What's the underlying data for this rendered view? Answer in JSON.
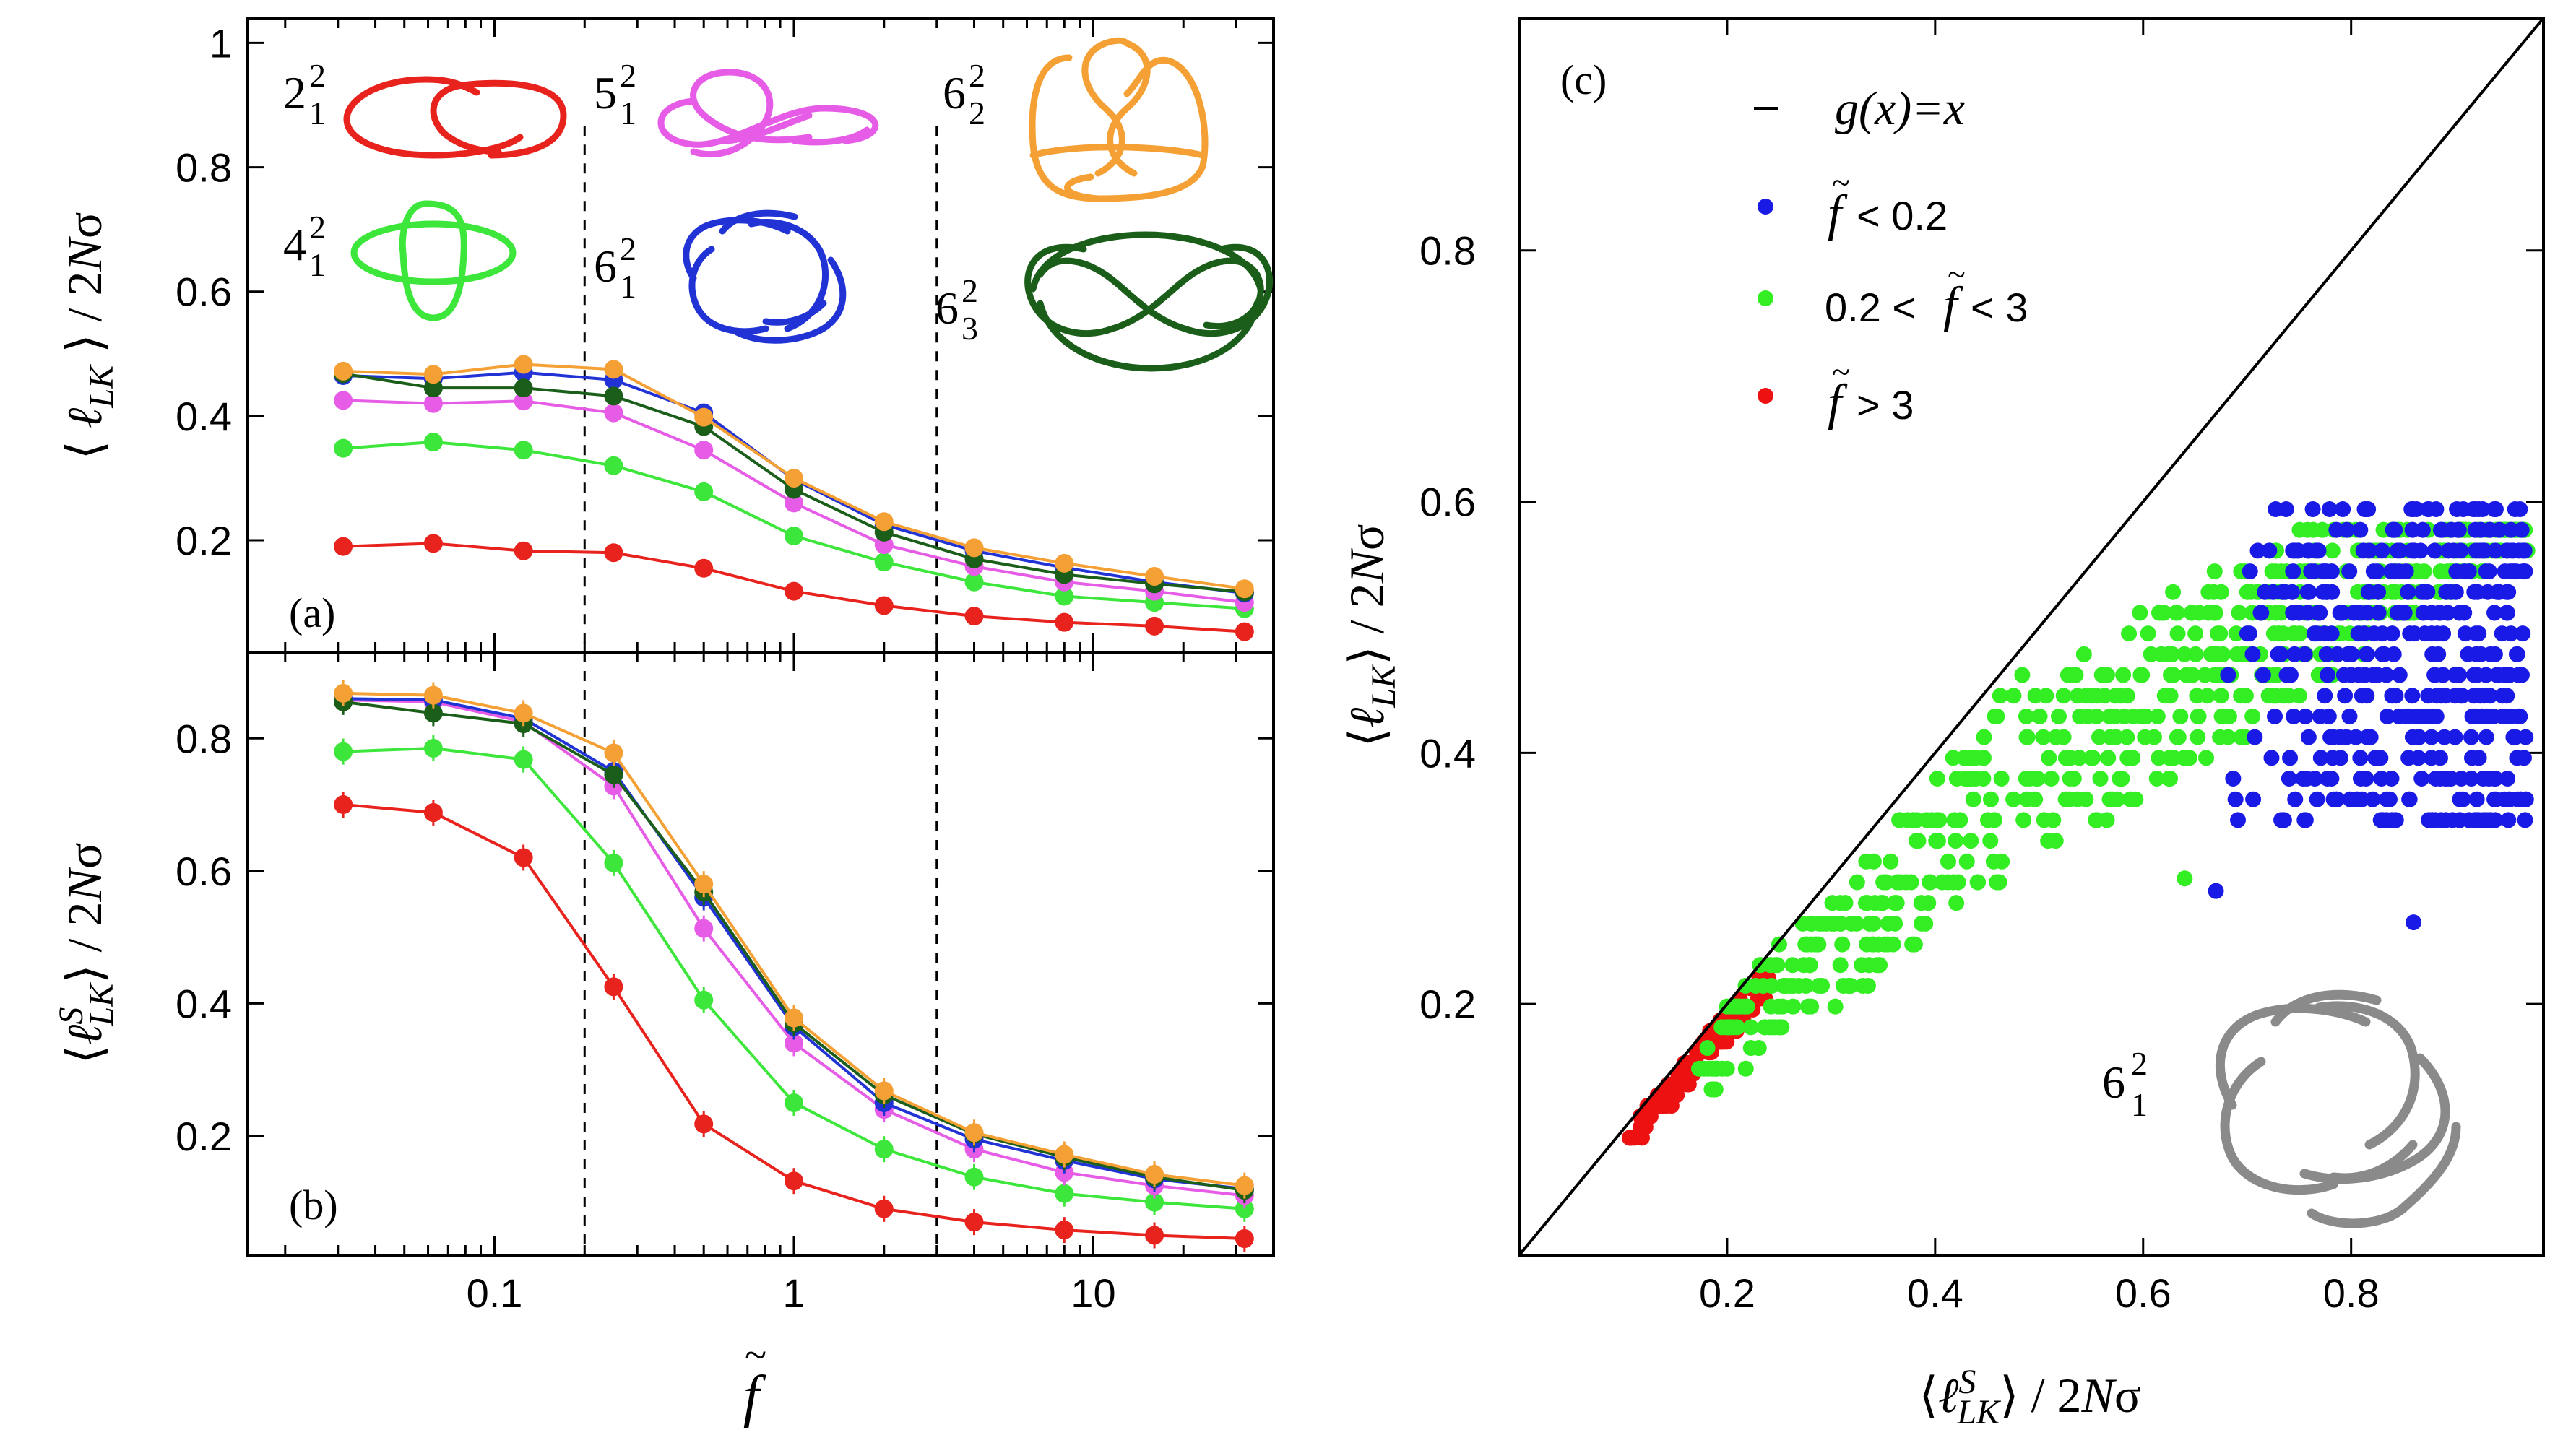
{
  "colors": {
    "red": "#e8231e",
    "green": "#3ce63a",
    "magenta": "#e65ce6",
    "blue": "#2233d6",
    "dark_green": "#1a5e1a",
    "orange": "#f5a035",
    "scatter_blue": "#1a1ae6",
    "scatter_green": "#33ee22",
    "scatter_red": "#ee1111",
    "grey": "#8a8a8a"
  },
  "knots": [
    {
      "name": "2_1^2",
      "base": "2",
      "sub": "1",
      "sup": "2",
      "color": "#e8231e",
      "icon": "hopf-link-icon"
    },
    {
      "name": "5_1^2",
      "base": "5",
      "sub": "1",
      "sup": "2",
      "color": "#e65ce6",
      "icon": "whitehead-link-icon"
    },
    {
      "name": "6_2^2",
      "base": "6",
      "sub": "2",
      "sup": "2",
      "color": "#f5a035",
      "icon": "link-6-2-2-icon"
    },
    {
      "name": "4_1^2",
      "base": "4",
      "sub": "1",
      "sup": "2",
      "color": "#3ce63a",
      "icon": "solomon-link-icon"
    },
    {
      "name": "6_1^2",
      "base": "6",
      "sub": "1",
      "sup": "2",
      "color": "#2233d6",
      "icon": "link-6-1-2-icon"
    },
    {
      "name": "6_3^2",
      "base": "6",
      "sub": "3",
      "sup": "2",
      "color": "#1a5e1a",
      "icon": "link-6-3-2-icon"
    }
  ],
  "chart_data": [
    {
      "id": "a",
      "type": "line",
      "panel_label": "(a)",
      "ylabel": "⟨ ℓ_LK ⟩ / 2Nσ",
      "xscale": "log",
      "xlim": [
        0.015,
        40
      ],
      "ylim": [
        0.02,
        1.04
      ],
      "yticks": [
        "0.2",
        "0.4",
        "0.6",
        "0.8",
        "1"
      ],
      "ytick_values": [
        0.2,
        0.4,
        0.6,
        0.8,
        1.0
      ],
      "vlines": [
        0.2,
        3
      ],
      "x": [
        0.03125,
        0.0625,
        0.125,
        0.25,
        0.5,
        1,
        2,
        4,
        8,
        16,
        32
      ],
      "series": [
        {
          "name": "2_1^2",
          "color": "#e8231e",
          "values": [
            0.19,
            0.195,
            0.183,
            0.18,
            0.155,
            0.118,
            0.095,
            0.078,
            0.068,
            0.062,
            0.053
          ]
        },
        {
          "name": "4_1^2",
          "color": "#3ce63a",
          "values": [
            0.348,
            0.358,
            0.345,
            0.32,
            0.278,
            0.207,
            0.165,
            0.133,
            0.11,
            0.1,
            0.09
          ]
        },
        {
          "name": "5_1^2",
          "color": "#e65ce6",
          "values": [
            0.425,
            0.42,
            0.424,
            0.405,
            0.345,
            0.26,
            0.193,
            0.158,
            0.133,
            0.118,
            0.1
          ]
        },
        {
          "name": "6_1^2",
          "color": "#2233d6",
          "values": [
            0.465,
            0.46,
            0.47,
            0.458,
            0.405,
            0.298,
            0.225,
            0.183,
            0.156,
            0.133,
            0.115
          ]
        },
        {
          "name": "6_3^2",
          "color": "#1a5e1a",
          "values": [
            0.468,
            0.445,
            0.445,
            0.432,
            0.383,
            0.282,
            0.213,
            0.17,
            0.145,
            0.13,
            0.117
          ]
        },
        {
          "name": "6_2^2",
          "color": "#f5a035",
          "values": [
            0.472,
            0.467,
            0.483,
            0.475,
            0.398,
            0.3,
            0.23,
            0.188,
            0.163,
            0.142,
            0.122
          ]
        }
      ]
    },
    {
      "id": "b",
      "type": "line",
      "panel_label": "(b)",
      "xlabel": "f̃",
      "ylabel": "⟨ ℓ^S_LK ⟩ / 2Nσ",
      "xscale": "log",
      "xlim": [
        0.015,
        40
      ],
      "xticks": [
        "0.1",
        "1",
        "10"
      ],
      "xtick_values": [
        0.1,
        1,
        10
      ],
      "ylim": [
        0.02,
        0.93
      ],
      "yticks": [
        "0.2",
        "0.4",
        "0.6",
        "0.8"
      ],
      "ytick_values": [
        0.2,
        0.4,
        0.6,
        0.8
      ],
      "vlines": [
        0.2,
        3
      ],
      "x": [
        0.03125,
        0.0625,
        0.125,
        0.25,
        0.5,
        1,
        2,
        4,
        8,
        16,
        32
      ],
      "series": [
        {
          "name": "2_1^2",
          "color": "#e8231e",
          "values": [
            0.7,
            0.688,
            0.62,
            0.425,
            0.218,
            0.132,
            0.09,
            0.07,
            0.058,
            0.05,
            0.045
          ]
        },
        {
          "name": "4_1^2",
          "color": "#3ce63a",
          "values": [
            0.78,
            0.785,
            0.768,
            0.612,
            0.405,
            0.25,
            0.18,
            0.138,
            0.113,
            0.1,
            0.09
          ]
        },
        {
          "name": "5_1^2",
          "color": "#e65ce6",
          "values": [
            0.858,
            0.855,
            0.825,
            0.728,
            0.513,
            0.34,
            0.24,
            0.18,
            0.145,
            0.125,
            0.11
          ]
        },
        {
          "name": "6_1^2",
          "color": "#2233d6",
          "values": [
            0.86,
            0.858,
            0.83,
            0.75,
            0.56,
            0.365,
            0.25,
            0.195,
            0.163,
            0.135,
            0.12
          ]
        },
        {
          "name": "6_3^2",
          "color": "#1a5e1a",
          "values": [
            0.855,
            0.838,
            0.822,
            0.745,
            0.568,
            0.37,
            0.262,
            0.203,
            0.168,
            0.138,
            0.118
          ]
        },
        {
          "name": "6_2^2",
          "color": "#f5a035",
          "values": [
            0.868,
            0.865,
            0.838,
            0.778,
            0.58,
            0.378,
            0.268,
            0.205,
            0.172,
            0.142,
            0.125
          ]
        }
      ]
    },
    {
      "id": "c",
      "type": "scatter",
      "panel_label": "(c)",
      "xlabel": "⟨ ℓ^S_LK ⟩ / 2Nσ",
      "ylabel": "⟨ ℓ_LK ⟩ / 2Nσ",
      "xlim": [
        0.0,
        0.985
      ],
      "ylim": [
        0.0,
        0.985
      ],
      "xticks": [
        "0.2",
        "0.4",
        "0.6",
        "0.8"
      ],
      "xtick_values": [
        0.2,
        0.4,
        0.6,
        0.8
      ],
      "yticks": [
        "0.2",
        "0.4",
        "0.6",
        "0.8"
      ],
      "ytick_values": [
        0.2,
        0.4,
        0.6,
        0.8
      ],
      "line_legend": "g(x)=x",
      "knot": {
        "base": "6",
        "sub": "1",
        "sup": "2",
        "icon": "link-6-1-2-icon"
      },
      "series": [
        {
          "name": "f̃ < 0.2",
          "color": "#1a1ae6",
          "region": "blue"
        },
        {
          "name": "0.2 < f̃ < 3",
          "color": "#33ee22",
          "region": "green"
        },
        {
          "name": "f̃ > 3",
          "color": "#ee1111",
          "region": "red"
        }
      ]
    }
  ]
}
